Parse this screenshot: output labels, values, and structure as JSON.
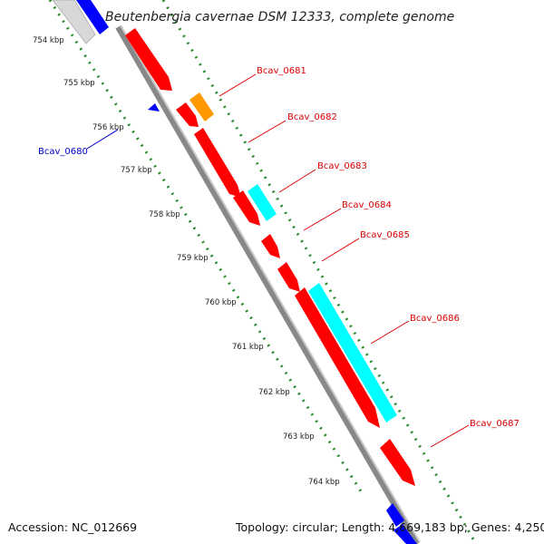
{
  "map": {
    "title": "Beutenbergia cavernae DSM 12333, complete genome",
    "accession": "Accession: NC_012669",
    "summary": "Topology: circular; Length: 4,669,183 bp; Genes: 4,250"
  },
  "kbp_ticks": [
    "754 kbp",
    "755 kbp",
    "756 kbp",
    "757 kbp",
    "758 kbp",
    "759 kbp",
    "760 kbp",
    "761 kbp",
    "762 kbp",
    "763 kbp",
    "764 kbp"
  ],
  "gene_labels": [
    {
      "text": "Bcav_0680",
      "color": "#0000cc"
    },
    {
      "text": "Bcav_0681",
      "color": "#dd0000"
    },
    {
      "text": "Bcav_0682",
      "color": "#dd0000"
    },
    {
      "text": "Bcav_0683",
      "color": "#dd0000"
    },
    {
      "text": "Bcav_0684",
      "color": "#dd0000"
    },
    {
      "text": "Bcav_0685",
      "color": "#dd0000"
    },
    {
      "text": "Bcav_0686",
      "color": "#dd0000"
    },
    {
      "text": "Bcav_0687",
      "color": "#dd0000"
    }
  ],
  "colors": {
    "forward_gene": "#ff0000",
    "reverse_gene": "#0000ff",
    "rrna_like": "#00ffff",
    "trna_like": "#ff9900",
    "backbone": "#999999",
    "tick_dots": "#2a8a2a",
    "reverse_label": "#0000cc",
    "forward_label": "#dd0000"
  }
}
